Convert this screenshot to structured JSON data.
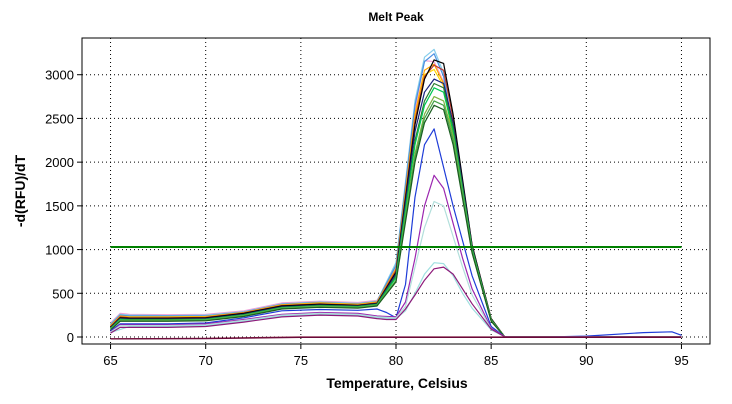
{
  "chart_data": {
    "type": "line",
    "title": "Melt Peak",
    "xlabel": "Temperature, Celsius",
    "ylabel": "-d(RFU)/dT",
    "xlim": [
      63.5,
      96.5
    ],
    "ylim": [
      -80,
      3420
    ],
    "xticks": [
      65,
      70,
      75,
      80,
      85,
      90,
      95
    ],
    "yticks": [
      0,
      500,
      1000,
      1500,
      2000,
      2500,
      3000
    ],
    "grid": true,
    "threshold": {
      "value": 1030,
      "color": "#008000"
    },
    "series": [
      {
        "color": "#f2a0d8",
        "x": [
          65,
          65.5,
          66,
          68,
          70,
          72,
          74,
          76,
          78,
          79,
          80,
          81,
          81.5,
          82,
          82.5,
          83,
          84,
          85,
          85.7,
          86,
          88,
          90,
          95
        ],
        "y": [
          160,
          270,
          260,
          255,
          260,
          300,
          390,
          410,
          395,
          420,
          800,
          2600,
          3160,
          3150,
          2920,
          2300,
          1000,
          200,
          5,
          0,
          0,
          0,
          0
        ]
      },
      {
        "color": "#87ceeb",
        "x": [
          65,
          65.5,
          66,
          68,
          70,
          72,
          74,
          76,
          78,
          79,
          80,
          81,
          81.5,
          82,
          82.5,
          83,
          84,
          85,
          85.7,
          86,
          88,
          90,
          95
        ],
        "y": [
          150,
          260,
          250,
          245,
          250,
          290,
          380,
          400,
          385,
          410,
          850,
          2700,
          3200,
          3290,
          3020,
          2350,
          1000,
          200,
          5,
          0,
          0,
          0,
          0
        ]
      },
      {
        "color": "#4a90e2",
        "x": [
          65,
          65.5,
          66,
          68,
          70,
          72,
          74,
          76,
          78,
          79,
          80,
          81,
          81.5,
          82,
          82.5,
          83,
          84,
          85,
          85.7,
          86,
          88,
          90,
          95
        ],
        "y": [
          140,
          250,
          240,
          240,
          240,
          285,
          375,
          395,
          380,
          405,
          820,
          2650,
          3150,
          3240,
          2980,
          2320,
          980,
          190,
          5,
          0,
          0,
          0,
          0
        ]
      },
      {
        "color": "#ffa500",
        "x": [
          65,
          65.5,
          66,
          68,
          70,
          72,
          74,
          76,
          78,
          79,
          80,
          81,
          81.5,
          82,
          82.5,
          83,
          84,
          85,
          85.7,
          86,
          88,
          90,
          95
        ],
        "y": [
          130,
          240,
          230,
          230,
          235,
          280,
          370,
          390,
          375,
          400,
          780,
          2550,
          3050,
          3120,
          2900,
          2300,
          1000,
          200,
          5,
          0,
          0,
          0,
          0
        ]
      },
      {
        "color": "#ffd700",
        "x": [
          65,
          65.5,
          66,
          68,
          70,
          72,
          74,
          76,
          78,
          79,
          80,
          81,
          81.5,
          82,
          82.5,
          83,
          84,
          85,
          85.7,
          86,
          88,
          90,
          95
        ],
        "y": [
          125,
          235,
          225,
          225,
          230,
          275,
          365,
          385,
          370,
          395,
          760,
          2500,
          3000,
          3060,
          2870,
          2280,
          990,
          200,
          5,
          0,
          0,
          0,
          0
        ]
      },
      {
        "color": "#c0392b",
        "x": [
          65,
          65.5,
          66,
          68,
          70,
          72,
          74,
          76,
          78,
          79,
          80,
          81,
          81.5,
          82,
          82.5,
          83,
          84,
          85,
          85.7,
          86,
          88,
          90,
          95
        ],
        "y": [
          120,
          230,
          220,
          220,
          225,
          275,
          360,
          380,
          365,
          390,
          760,
          2480,
          2980,
          3110,
          3050,
          2500,
          1050,
          210,
          5,
          0,
          0,
          0,
          0
        ]
      },
      {
        "color": "#000000",
        "x": [
          65,
          65.5,
          66,
          68,
          70,
          72,
          74,
          76,
          78,
          79,
          80,
          81,
          81.5,
          82,
          82.5,
          83,
          84,
          85,
          85.7,
          86,
          88,
          90,
          95
        ],
        "y": [
          110,
          220,
          215,
          215,
          220,
          270,
          355,
          375,
          360,
          385,
          740,
          2430,
          2950,
          3170,
          3130,
          2550,
          1050,
          210,
          5,
          0,
          0,
          0,
          0
        ]
      },
      {
        "color": "#1a237e",
        "x": [
          65,
          65.5,
          66,
          68,
          70,
          72,
          74,
          76,
          78,
          79,
          80,
          81,
          81.5,
          82,
          82.5,
          83,
          84,
          85,
          85.7,
          86,
          88,
          90,
          95
        ],
        "y": [
          105,
          210,
          205,
          205,
          210,
          260,
          345,
          365,
          355,
          380,
          720,
          2350,
          2800,
          2950,
          2900,
          2450,
          1030,
          200,
          5,
          0,
          0,
          0,
          0
        ]
      },
      {
        "color": "#2e7d32",
        "x": [
          65,
          65.5,
          66,
          68,
          70,
          72,
          74,
          76,
          78,
          79,
          80,
          81,
          81.5,
          82,
          82.5,
          83,
          84,
          85,
          85.7,
          86,
          88,
          90,
          95
        ],
        "y": [
          100,
          205,
          200,
          200,
          205,
          255,
          340,
          360,
          350,
          375,
          700,
          2250,
          2700,
          2900,
          2850,
          2400,
          1020,
          200,
          5,
          0,
          0,
          0,
          0
        ]
      },
      {
        "color": "#00c853",
        "x": [
          65,
          65.5,
          66,
          68,
          70,
          72,
          74,
          76,
          78,
          79,
          80,
          81,
          81.5,
          82,
          82.5,
          83,
          84,
          85,
          85.7,
          86,
          88,
          90,
          95
        ],
        "y": [
          95,
          200,
          195,
          195,
          200,
          250,
          335,
          355,
          345,
          370,
          680,
          2200,
          2650,
          2850,
          2800,
          2350,
          1000,
          195,
          5,
          0,
          0,
          0,
          0
        ]
      },
      {
        "color": "#7cb342",
        "x": [
          65,
          65.5,
          66,
          68,
          70,
          72,
          74,
          76,
          78,
          79,
          80,
          81,
          81.5,
          82,
          82.5,
          83,
          84,
          85,
          85.7,
          86,
          88,
          90,
          95
        ],
        "y": [
          90,
          190,
          190,
          190,
          195,
          245,
          330,
          350,
          340,
          365,
          650,
          2100,
          2550,
          2750,
          2700,
          2300,
          980,
          190,
          5,
          0,
          0,
          0,
          0
        ]
      },
      {
        "color": "#43a047",
        "x": [
          65,
          65.5,
          66,
          68,
          70,
          72,
          74,
          76,
          78,
          79,
          80,
          81,
          81.5,
          82,
          82.5,
          83,
          84,
          85,
          85.7,
          86,
          88,
          90,
          95
        ],
        "y": [
          85,
          185,
          185,
          185,
          190,
          240,
          325,
          345,
          335,
          360,
          640,
          2050,
          2500,
          2700,
          2650,
          2250,
          970,
          185,
          5,
          0,
          0,
          0,
          0
        ]
      },
      {
        "color": "#1b5e20",
        "x": [
          65,
          65.5,
          66,
          68,
          70,
          72,
          74,
          76,
          78,
          79,
          80,
          81,
          81.5,
          82,
          82.5,
          83,
          84,
          85,
          85.7,
          86,
          88,
          90,
          95
        ],
        "y": [
          80,
          180,
          180,
          180,
          185,
          235,
          320,
          340,
          330,
          355,
          630,
          2000,
          2450,
          2650,
          2600,
          2200,
          960,
          180,
          5,
          0,
          0,
          0,
          0
        ]
      },
      {
        "color": "#1e3cd8",
        "x": [
          65,
          65.5,
          66,
          68,
          70,
          72,
          74,
          76,
          78,
          79,
          79.5,
          80,
          80.5,
          81,
          81.5,
          82,
          83,
          84,
          85,
          85.7,
          86,
          88,
          90,
          93,
          94.5,
          95
        ],
        "y": [
          70,
          150,
          150,
          150,
          160,
          220,
          300,
          315,
          305,
          320,
          280,
          220,
          600,
          1600,
          2200,
          2380,
          1500,
          700,
          120,
          5,
          0,
          0,
          10,
          50,
          60,
          20
        ]
      },
      {
        "color": "#9c27b0",
        "x": [
          65,
          65.5,
          66,
          68,
          70,
          72,
          74,
          76,
          78,
          79,
          80,
          80.5,
          81,
          81.5,
          82,
          82.5,
          83,
          83.5,
          84,
          85,
          85.7,
          86,
          88,
          95
        ],
        "y": [
          60,
          140,
          140,
          140,
          150,
          200,
          260,
          280,
          270,
          240,
          230,
          400,
          900,
          1500,
          1850,
          1700,
          1300,
          900,
          550,
          100,
          5,
          0,
          0,
          0
        ]
      },
      {
        "color": "#b2dfdb",
        "x": [
          65,
          65.5,
          66,
          68,
          70,
          72,
          74,
          76,
          78,
          79,
          80,
          80.5,
          81,
          81.5,
          82,
          82.5,
          83,
          83.5,
          84,
          85,
          85.7,
          86,
          88,
          95
        ],
        "y": [
          55,
          130,
          130,
          130,
          140,
          190,
          250,
          270,
          260,
          230,
          220,
          350,
          800,
          1250,
          1550,
          1500,
          1150,
          800,
          480,
          90,
          5,
          0,
          0,
          0
        ]
      },
      {
        "color": "#a0e0e0",
        "x": [
          65,
          66,
          68,
          70,
          72,
          74,
          76,
          78,
          79,
          80,
          80.5,
          81,
          81.5,
          82,
          82.5,
          83,
          83.5,
          84,
          85,
          85.7,
          86,
          88,
          95
        ],
        "y": [
          50,
          120,
          120,
          130,
          180,
          240,
          260,
          250,
          220,
          210,
          300,
          500,
          720,
          850,
          840,
          700,
          500,
          330,
          80,
          5,
          0,
          0,
          0
        ]
      },
      {
        "color": "#8e1a7a",
        "x": [
          65,
          65.5,
          66,
          68,
          70,
          72,
          74,
          76,
          78,
          79,
          79.5,
          80,
          80.5,
          81,
          81.5,
          82,
          82.5,
          83,
          83.5,
          84,
          85,
          85.7,
          86,
          88,
          95
        ],
        "y": [
          45,
          110,
          110,
          110,
          120,
          170,
          230,
          250,
          240,
          210,
          200,
          200,
          320,
          480,
          650,
          780,
          800,
          720,
          550,
          380,
          90,
          5,
          0,
          0,
          0
        ]
      },
      {
        "color": "#8b1a3a",
        "x": [
          65,
          70,
          75,
          80,
          85,
          90,
          95
        ],
        "y": [
          -20,
          -15,
          0,
          0,
          0,
          0,
          0
        ]
      },
      {
        "color": "#6a0a3a",
        "x": [
          65,
          70,
          75,
          80,
          85,
          90,
          95
        ],
        "y": [
          -22,
          -18,
          -5,
          -5,
          -5,
          -5,
          -5
        ]
      }
    ]
  }
}
